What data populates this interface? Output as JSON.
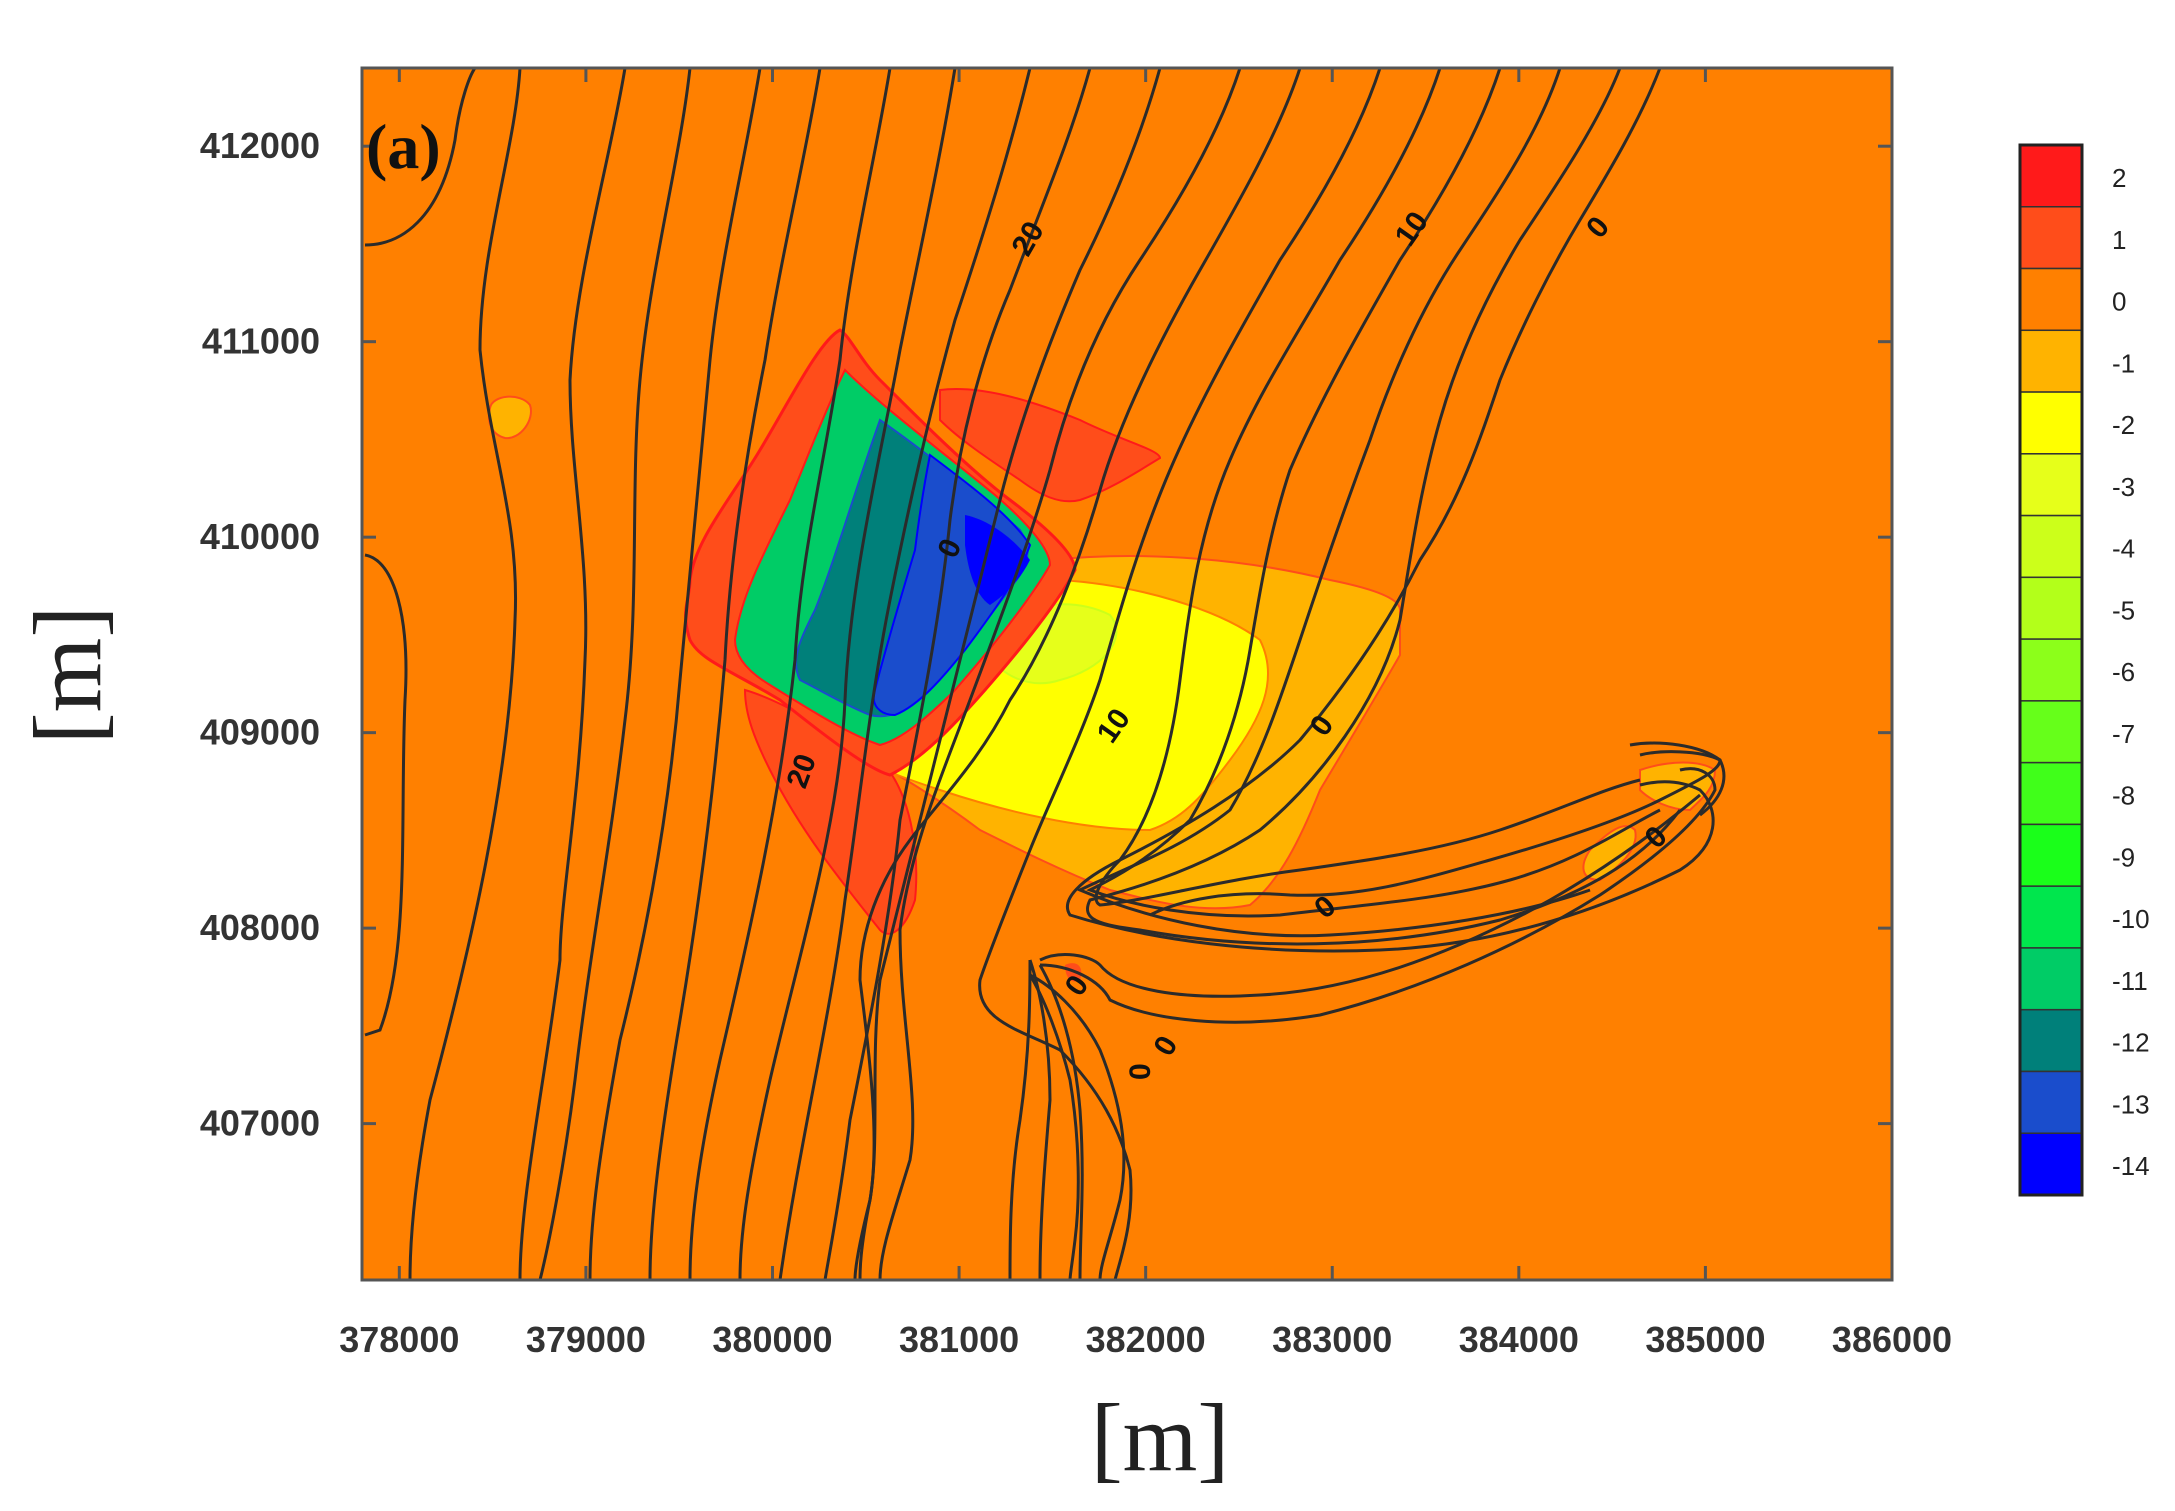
{
  "chart_data": {
    "type": "heatmap",
    "panel_label": "(a)",
    "xlabel": "[m]",
    "ylabel": "[m]",
    "xlim": [
      377800,
      386000
    ],
    "ylim": [
      406200,
      412400
    ],
    "x_ticks": [
      378000,
      379000,
      380000,
      381000,
      382000,
      383000,
      384000,
      385000,
      386000
    ],
    "y_ticks": [
      407000,
      408000,
      409000,
      410000,
      411000,
      412000
    ],
    "x_tick_labels": [
      "378000",
      "379000",
      "380000",
      "381000",
      "382000",
      "383000",
      "384000",
      "385000",
      "386000"
    ],
    "y_tick_labels": [
      "407000",
      "408000",
      "409000",
      "410000",
      "411000",
      "412000"
    ],
    "colorbar": {
      "labels": [
        "2",
        "1",
        "0",
        "-1",
        "-2",
        "-3",
        "-4",
        "-5",
        "-6",
        "-7",
        "-8",
        "-9",
        "-10",
        "-11",
        "-12",
        "-13",
        "-14"
      ],
      "colors": [
        "#ff1a1a",
        "#ff4d1a",
        "#ff8000",
        "#ffb300",
        "#ffff00",
        "#e6ff1a",
        "#ccff1a",
        "#b3ff1a",
        "#8cff1a",
        "#66ff1a",
        "#40ff1a",
        "#1aff1a",
        "#00e64d",
        "#00cc66",
        "#00807a",
        "#1a4dcc",
        "#0000ff"
      ]
    },
    "background_color": "#ff8000",
    "contour_labels": [
      "20",
      "10",
      "0",
      "0",
      "10",
      "20",
      "0",
      "0",
      "0",
      "0",
      "0",
      "0"
    ]
  }
}
